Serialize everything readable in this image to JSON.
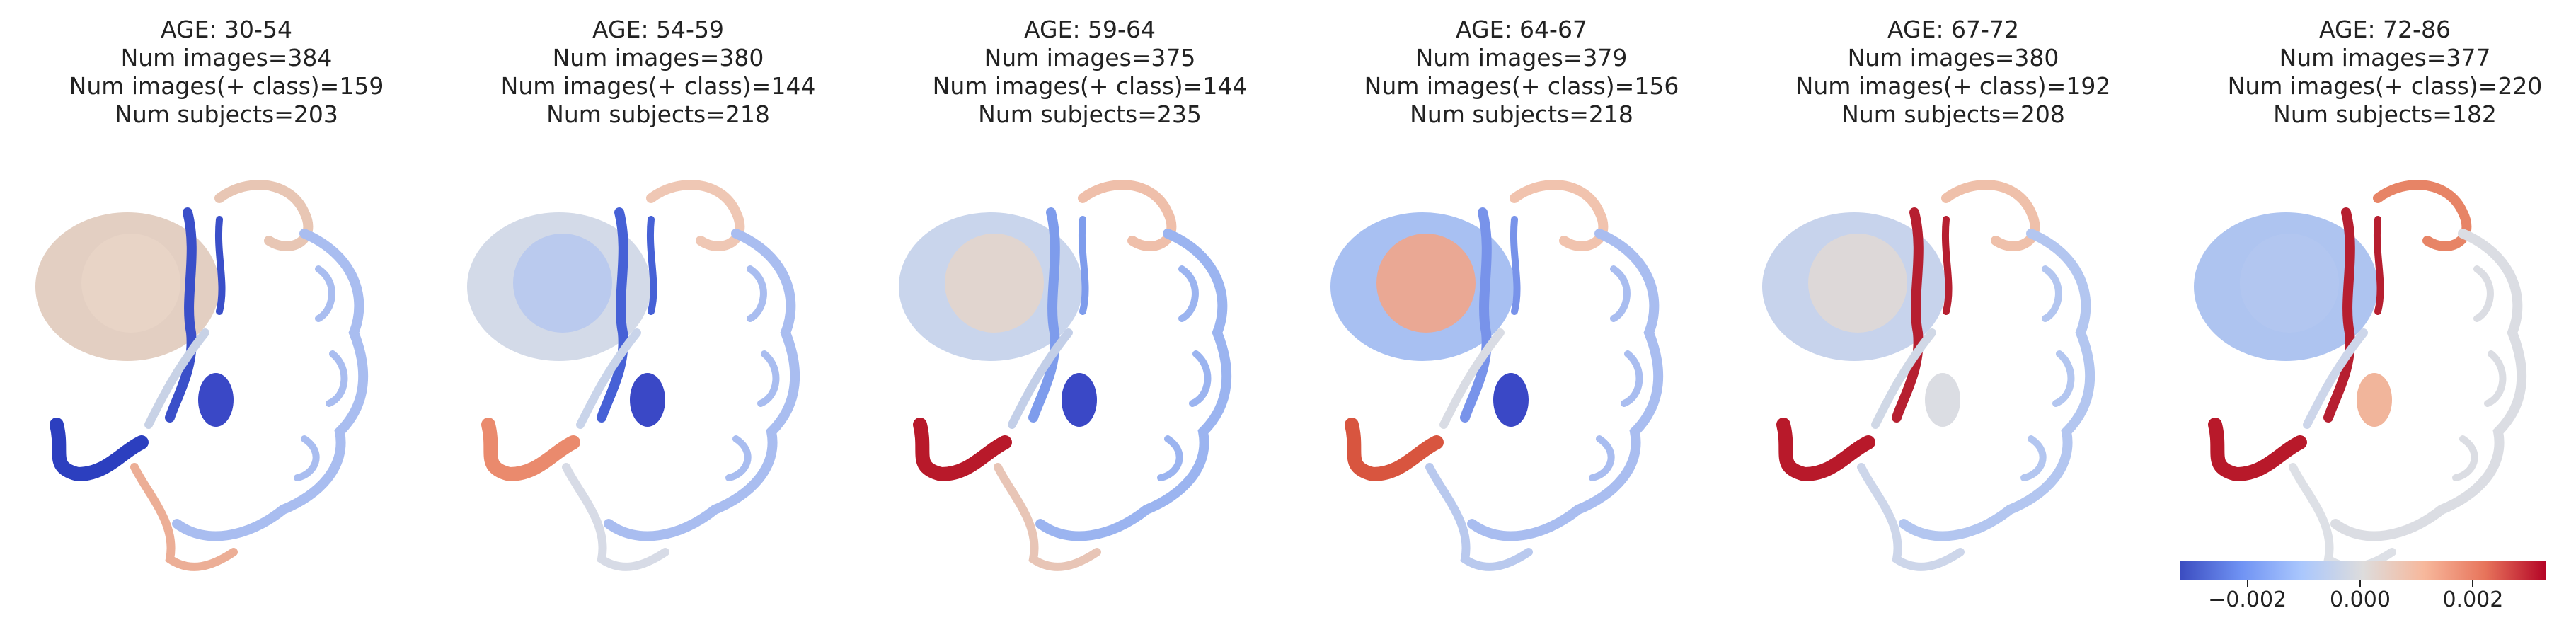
{
  "panels": [
    {
      "age": "AGE: 30-54",
      "num_images": "Num images=384",
      "num_pos": "Num images(+ class)=159",
      "num_subjects": "Num subjects=203",
      "colors": {
        "bg": "#e3cfc2",
        "cerebellum": "#e8d4c6",
        "inner": "#3a4fc9",
        "outer_front": "#e8c6b4",
        "outer_back": "#a9bdf0",
        "stem": "#c8d2e6",
        "temporal": "#2c3fbf",
        "bottom": "#ecae96",
        "blob": "#3a48c6"
      }
    },
    {
      "age": "AGE: 54-59",
      "num_images": "Num images=380",
      "num_pos": "Num images(+ class)=144",
      "num_subjects": "Num subjects=218",
      "colors": {
        "bg": "#d3dae8",
        "cerebellum": "#b7c8ee",
        "inner": "#4661d6",
        "outer_front": "#efc7b4",
        "outer_back": "#a9bdf0",
        "stem": "#c9d4ea",
        "temporal": "#ea8a6d",
        "bottom": "#d7dbe6",
        "blob": "#3a48c6"
      }
    },
    {
      "age": "AGE: 59-64",
      "num_images": "Num images=375",
      "num_pos": "Num images(+ class)=144",
      "num_subjects": "Num subjects=235",
      "colors": {
        "bg": "#c9d5ec",
        "cerebellum": "#e3d5cc",
        "inner": "#7e9cec",
        "outer_front": "#efbfaa",
        "outer_back": "#9bb4f0",
        "stem": "#c3cfe8",
        "temporal": "#b8192a",
        "bottom": "#e8c5b6",
        "blob": "#3a48c6"
      }
    },
    {
      "age": "AGE: 64-67",
      "num_images": "Num images=379",
      "num_pos": "Num images(+ class)=156",
      "num_subjects": "Num subjects=218",
      "colors": {
        "bg": "#a8c0f2",
        "cerebellum": "#f1a58a",
        "inner": "#7893ea",
        "outer_front": "#f1c3ae",
        "outer_back": "#a9bdf0",
        "stem": "#d9dce4",
        "temporal": "#d8553f",
        "bottom": "#b9c9ee",
        "blob": "#3a48c6"
      }
    },
    {
      "age": "AGE: 67-72",
      "num_images": "Num images=380",
      "num_pos": "Num images(+ class)=192",
      "num_subjects": "Num subjects=208",
      "colors": {
        "bg": "#c7d3ec",
        "cerebellum": "#dfd8d6",
        "inner": "#b61f30",
        "outer_front": "#efc0aa",
        "outer_back": "#b3c6f0",
        "stem": "#d0d8e6",
        "temporal": "#b8192a",
        "bottom": "#cdd6ea",
        "blob": "#dbdde3"
      }
    },
    {
      "age": "AGE: 72-86",
      "num_images": "Num images=377",
      "num_pos": "Num images(+ class)=220",
      "num_subjects": "Num subjects=182",
      "colors": {
        "bg": "#aec4f0",
        "cerebellum": "#b2c6f0",
        "inner": "#b61f30",
        "outer_front": "#e78466",
        "outer_back": "#dbdde3",
        "stem": "#cdd6ea",
        "temporal": "#b8192a",
        "bottom": "#dde0e6",
        "blob": "#f1b59b"
      }
    }
  ],
  "colorbar": {
    "ticks": [
      "−0.002",
      "0.000",
      "0.002"
    ],
    "tick_values": [
      -0.002,
      0.0,
      0.002
    ],
    "range": [
      -0.0032,
      0.0033
    ],
    "colors": [
      "#3b4cc0",
      "#6f92f3",
      "#aac7fd",
      "#dddcdc",
      "#f7b89c",
      "#e7745b",
      "#b40426"
    ]
  }
}
